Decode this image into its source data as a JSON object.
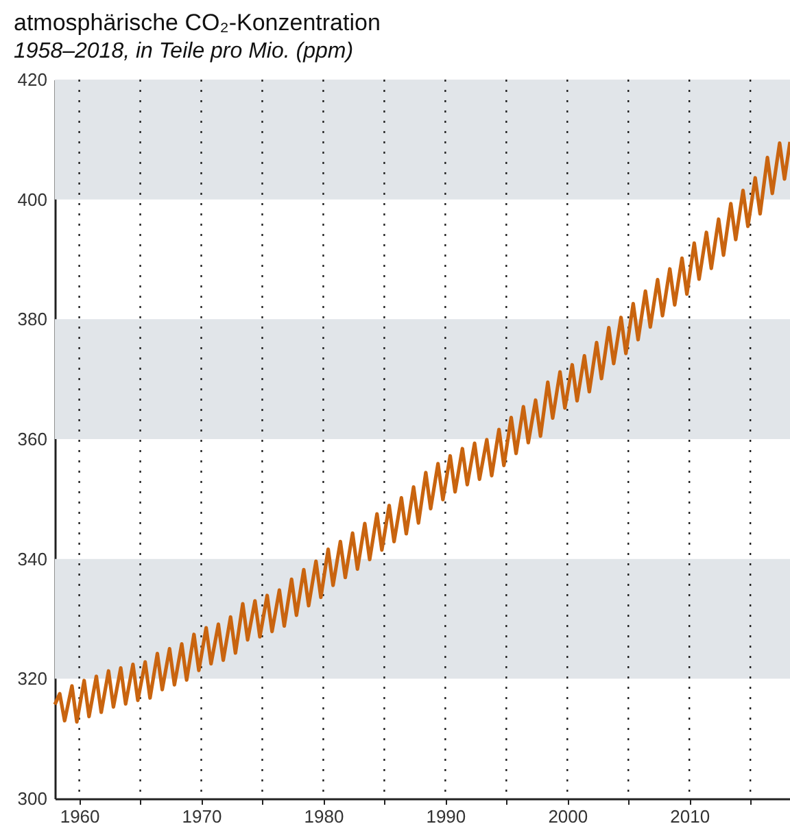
{
  "chart_data": {
    "type": "line",
    "title": "atmosphärische CO₂-Konzentration",
    "subtitle": "1958–2018, in Teile pro Mio. (ppm)",
    "xlim": [
      1958,
      2018.25
    ],
    "xticks": [
      1960,
      {
        "value": 1965,
        "label": null
      },
      1970,
      {
        "value": 1975,
        "label": null
      },
      1980,
      {
        "value": 1985,
        "label": null
      },
      1990,
      {
        "value": 1995,
        "label": null
      },
      2000,
      {
        "value": 2005,
        "label": null
      },
      2010,
      {
        "value": 2015,
        "label": null
      }
    ],
    "ylim": [
      300,
      420
    ],
    "yticks": [
      300,
      320,
      340,
      360,
      380,
      400,
      420
    ],
    "grid": "x",
    "line_style": "solid",
    "bands": [
      {
        "axis": "y",
        "from": 320,
        "to": 340,
        "color": "#e1e5e9"
      },
      {
        "axis": "y",
        "from": 360,
        "to": 380,
        "color": "#e1e5e9"
      },
      {
        "axis": "y",
        "from": 400,
        "to": 420,
        "color": "#e1e5e9"
      }
    ],
    "series": [
      {
        "color": "#c9640f",
        "x": [
          1958.0,
          1958.4,
          1958.8,
          1959.4,
          1959.8,
          1960.4,
          1960.8,
          1961.4,
          1961.8,
          1962.4,
          1962.8,
          1963.4,
          1963.8,
          1964.4,
          1964.8,
          1965.4,
          1965.8,
          1966.4,
          1966.8,
          1967.4,
          1967.8,
          1968.4,
          1968.8,
          1969.4,
          1969.8,
          1970.4,
          1970.8,
          1971.4,
          1971.8,
          1972.4,
          1972.8,
          1973.4,
          1973.8,
          1974.4,
          1974.8,
          1975.4,
          1975.8,
          1976.4,
          1976.8,
          1977.4,
          1977.8,
          1978.4,
          1978.8,
          1979.4,
          1979.8,
          1980.4,
          1980.8,
          1981.4,
          1981.8,
          1982.4,
          1982.8,
          1983.4,
          1983.8,
          1984.4,
          1984.8,
          1985.4,
          1985.8,
          1986.4,
          1986.8,
          1987.4,
          1987.8,
          1988.4,
          1988.8,
          1989.4,
          1989.8,
          1990.4,
          1990.8,
          1991.4,
          1991.8,
          1992.4,
          1992.8,
          1993.4,
          1993.8,
          1994.4,
          1994.8,
          1995.4,
          1995.8,
          1996.4,
          1996.8,
          1997.4,
          1997.8,
          1998.4,
          1998.8,
          1999.4,
          1999.8,
          2000.4,
          2000.8,
          2001.4,
          2001.8,
          2002.4,
          2002.8,
          2003.4,
          2003.8,
          2004.4,
          2004.8,
          2005.4,
          2005.8,
          2006.4,
          2006.8,
          2007.4,
          2007.8,
          2008.4,
          2008.8,
          2009.4,
          2009.8,
          2010.4,
          2010.8,
          2011.4,
          2011.8,
          2012.4,
          2012.8,
          2013.4,
          2013.8,
          2014.4,
          2014.8,
          2015.4,
          2015.8,
          2016.4,
          2016.8,
          2017.4,
          2017.8,
          2018.25
        ],
        "values": [
          315.7,
          317.5,
          313.0,
          318.8,
          312.8,
          319.7,
          313.7,
          320.4,
          314.4,
          321.3,
          315.3,
          321.8,
          315.8,
          322.4,
          316.4,
          322.8,
          316.8,
          324.2,
          318.2,
          325.0,
          319.0,
          325.8,
          319.8,
          327.4,
          321.4,
          328.5,
          322.5,
          329.1,
          323.1,
          330.3,
          324.3,
          332.5,
          326.5,
          333.0,
          327.0,
          333.9,
          327.9,
          334.8,
          328.8,
          336.6,
          330.6,
          338.2,
          332.2,
          339.6,
          333.6,
          341.6,
          335.6,
          342.9,
          336.9,
          344.3,
          338.3,
          345.9,
          339.9,
          347.5,
          341.5,
          348.9,
          342.9,
          350.2,
          344.2,
          352.0,
          346.0,
          354.4,
          348.4,
          355.9,
          349.9,
          357.2,
          351.2,
          358.4,
          352.4,
          359.3,
          353.3,
          359.9,
          353.9,
          361.6,
          355.6,
          363.6,
          357.6,
          365.4,
          359.4,
          366.5,
          360.5,
          369.5,
          363.5,
          371.2,
          365.2,
          372.4,
          366.4,
          373.9,
          367.9,
          376.1,
          370.1,
          378.6,
          372.6,
          380.3,
          374.3,
          382.6,
          376.6,
          384.7,
          378.7,
          386.6,
          380.6,
          388.4,
          382.4,
          390.2,
          384.2,
          392.7,
          386.7,
          394.5,
          388.5,
          396.7,
          390.7,
          399.3,
          393.3,
          401.5,
          395.5,
          403.6,
          397.6,
          407.0,
          401.0,
          409.4,
          403.4,
          409.6
        ]
      }
    ]
  }
}
